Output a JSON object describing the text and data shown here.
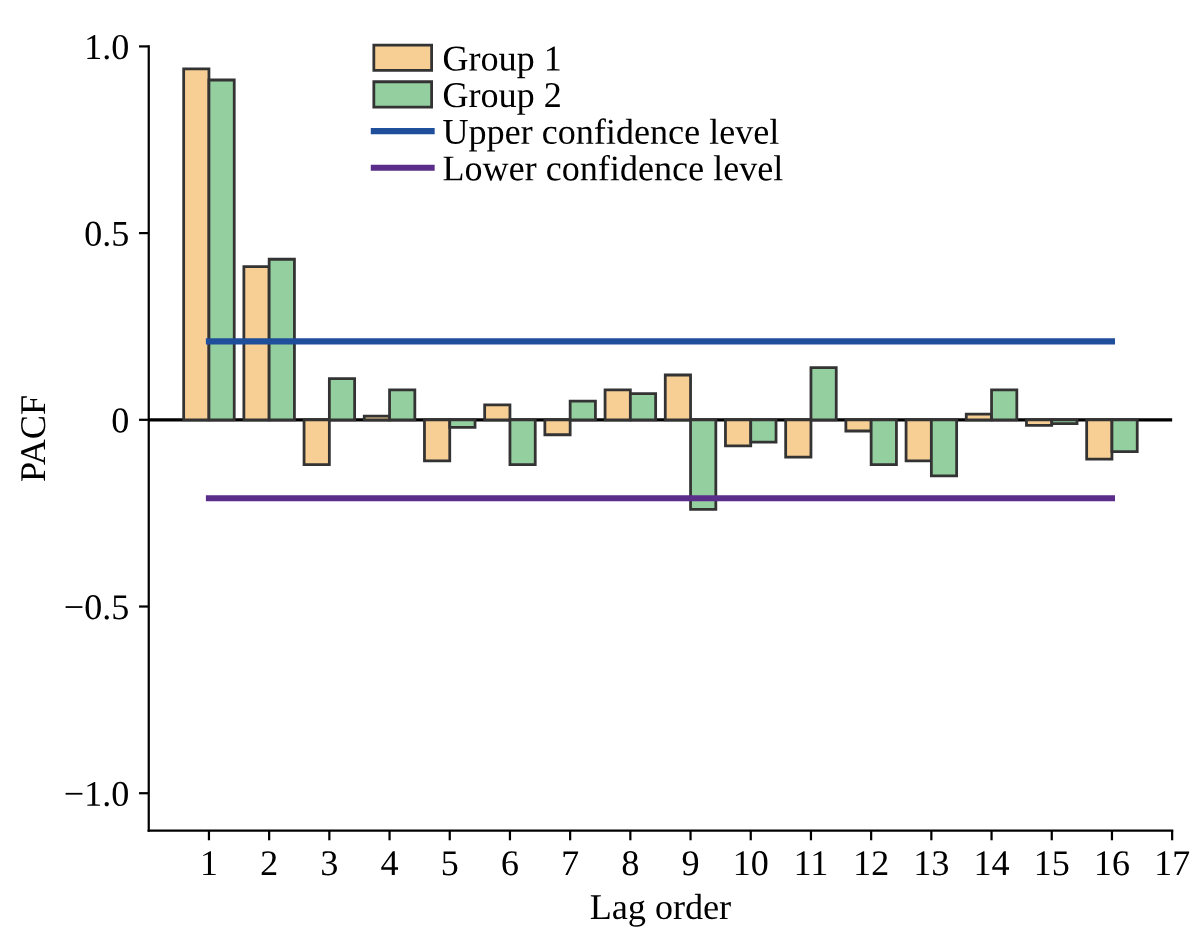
{
  "chart_data": {
    "type": "bar",
    "xlabel": "Lag order",
    "ylabel": "PACF",
    "x": [
      1,
      2,
      3,
      4,
      5,
      6,
      7,
      8,
      9,
      10,
      11,
      12,
      13,
      14,
      15,
      16
    ],
    "series": [
      {
        "name": "Group 1",
        "color": "#f7cf94",
        "values": [
          0.94,
          0.41,
          -0.12,
          0.01,
          -0.11,
          0.04,
          -0.04,
          0.08,
          0.12,
          -0.07,
          -0.1,
          -0.03,
          -0.11,
          0.015,
          -0.015,
          -0.105
        ]
      },
      {
        "name": "Group 2",
        "color": "#94cfa0",
        "values": [
          0.91,
          0.43,
          0.11,
          0.08,
          -0.02,
          -0.12,
          0.05,
          0.07,
          -0.24,
          -0.06,
          0.14,
          -0.12,
          -0.15,
          0.08,
          -0.01,
          -0.085
        ]
      },
      {
        "name": "Upper confidence level",
        "type": "line",
        "color": "#1f4e9a",
        "values": [
          0.21,
          0.21,
          0.21,
          0.21,
          0.21,
          0.21,
          0.21,
          0.21,
          0.21,
          0.21,
          0.21,
          0.21,
          0.21,
          0.21,
          0.21,
          0.21
        ]
      },
      {
        "name": "Lower confidence level",
        "type": "line",
        "color": "#5b2d8a",
        "values": [
          -0.21,
          -0.21,
          -0.21,
          -0.21,
          -0.21,
          -0.21,
          -0.21,
          -0.21,
          -0.21,
          -0.21,
          -0.21,
          -0.21,
          -0.21,
          -0.21,
          -0.21,
          -0.21
        ]
      }
    ],
    "ref_lines": [
      {
        "axis": "y",
        "value": 0,
        "color": "#000000"
      }
    ],
    "xlim": [
      0,
      17
    ],
    "xticks": [
      1,
      2,
      3,
      4,
      5,
      6,
      7,
      8,
      9,
      10,
      11,
      12,
      13,
      14,
      15,
      16,
      17
    ],
    "ylim": [
      -1.1,
      1.0
    ],
    "yticks": [
      {
        "value": -1.0,
        "label": "−1.0"
      },
      {
        "value": -0.5,
        "label": "−0.5"
      },
      0,
      0.5,
      {
        "value": 1.0,
        "label": "1.0"
      }
    ],
    "grid": false,
    "legend": "top"
  }
}
